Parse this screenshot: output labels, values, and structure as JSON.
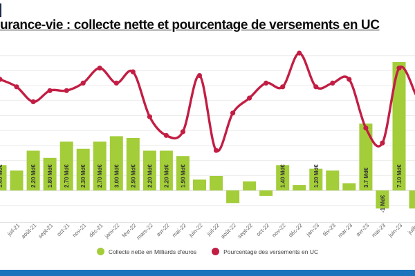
{
  "page": {
    "title_visible": "urance-vie : collecte nette et pourcentage de versements en UC",
    "bottom_bar_color": "#1b74bc",
    "background_color": "#ffffff"
  },
  "legend": {
    "items": [
      {
        "id": "collecte",
        "label": "Collecte nette en Milliards d'euros",
        "color": "#a3cd39"
      },
      {
        "id": "uc",
        "label": "Pourcentage des versements en UC",
        "color": "#c21e44"
      }
    ]
  },
  "chart_data": {
    "type": "combo-bar-line",
    "title": "urance-vie : collecte nette et pourcentage de versements en UC",
    "grid": "horizontal-light",
    "y_axis_labels_visible": false,
    "x_labels_rotated_45deg": true,
    "categories": [
      "",
      "juil-21",
      "août-21",
      "sept-21",
      "oct-21",
      "nov-21",
      "déc-21",
      "janv-22",
      "févr-22",
      "mars-22",
      "avr-22",
      "mai-22",
      "juin-22",
      "juil-22",
      "août-22",
      "sept-22",
      "oct-22",
      "nov-22",
      "déc-22",
      "jan-23",
      "fév-23",
      "mar-23",
      "avr-23",
      "mai-23",
      "juin-23",
      "juillet"
    ],
    "series": [
      {
        "name": "Collecte nette en Milliards d'euros",
        "type": "bar",
        "unit": "Md€",
        "color": "#a3cd39",
        "values": [
          1.4,
          1.1,
          2.2,
          1.8,
          2.7,
          2.3,
          2.7,
          3.0,
          2.9,
          2.2,
          2.2,
          1.9,
          0.6,
          0.8,
          -0.7,
          0.5,
          -0.3,
          1.4,
          0.3,
          1.2,
          1.1,
          0.4,
          3.7,
          -1.0,
          7.1,
          -1.0
        ],
        "bar_labels": [
          "1.40 Md€",
          "",
          "2.20 Md€",
          "1.80 Md€",
          "2.70 Md€",
          "2.30 Md€",
          "2.70 Md€",
          "3.00 Md€",
          "2.90 Md€",
          "2.20 Md€",
          "2.20 Md€",
          "1.90 Md€",
          "",
          "",
          "",
          "",
          "",
          "1.40 Md€",
          "",
          "1.20 Md€",
          "",
          "",
          "3.7 Md€",
          "-1 Md€",
          "7.10 Md€",
          ""
        ]
      },
      {
        "name": "Pourcentage des versements en UC",
        "type": "line",
        "unit": "%",
        "color": "#c21e44",
        "values": [
          41.5,
          40.5,
          38.5,
          40,
          40,
          41,
          43,
          41,
          42.5,
          36.5,
          34,
          34.5,
          42,
          32,
          37,
          39,
          41,
          40.5,
          45,
          40.5,
          41,
          41.5,
          35,
          33,
          43,
          39.5
        ]
      }
    ]
  }
}
